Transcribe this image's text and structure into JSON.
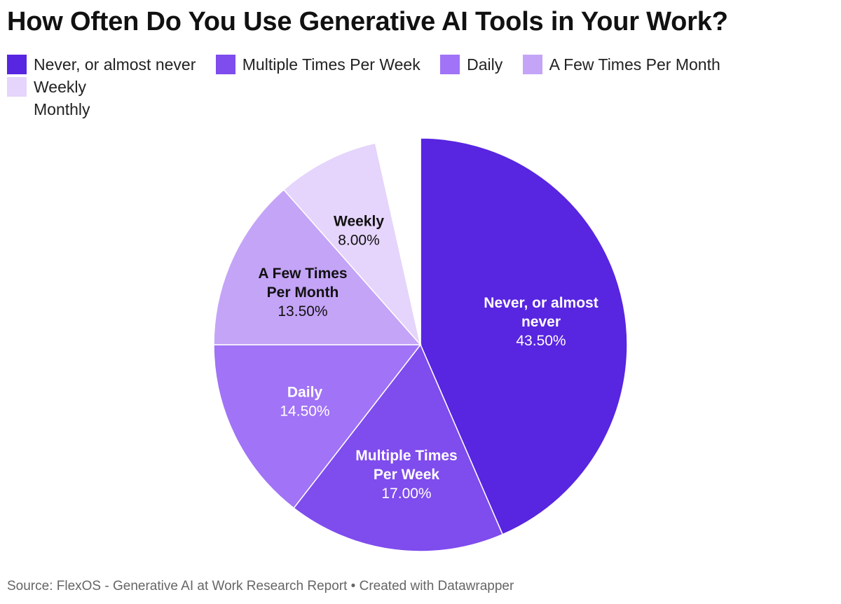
{
  "title": "How Often Do You Use Generative AI Tools in Your Work?",
  "source": "Source: FlexOS - Generative AI at Work Research Report • Created with Datawrapper",
  "legend": [
    {
      "label": "Never, or almost never",
      "color": "#5825e0"
    },
    {
      "label": "Multiple Times Per Week",
      "color": "#7f4ced"
    },
    {
      "label": "Daily",
      "color": "#a173f6"
    },
    {
      "label": "A Few Times Per Month",
      "color": "#c4a4f7"
    },
    {
      "label": "Weekly",
      "color": "#e5d4fb"
    },
    {
      "label": "Monthly",
      "color": ""
    }
  ],
  "chart_data": {
    "type": "pie",
    "title": "How Often Do You Use Generative AI Tools in Your Work?",
    "slices": [
      {
        "name": "Never, or almost never",
        "value": 43.5,
        "value_label": "43.50%",
        "label_lines": [
          "Never, or almost",
          "never"
        ],
        "color": "#5825e0",
        "label_color": "#ffffff"
      },
      {
        "name": "Multiple Times Per Week",
        "value": 17.0,
        "value_label": "17.00%",
        "label_lines": [
          "Multiple Times",
          "Per Week"
        ],
        "color": "#7f4ced",
        "label_color": "#ffffff"
      },
      {
        "name": "Daily",
        "value": 14.5,
        "value_label": "14.50%",
        "label_lines": [
          "Daily"
        ],
        "color": "#a173f6",
        "label_color": "#ffffff"
      },
      {
        "name": "A Few Times Per Month",
        "value": 13.5,
        "value_label": "13.50%",
        "label_lines": [
          "A Few Times",
          "Per Month"
        ],
        "color": "#c4a4f7",
        "label_color": "#111111"
      },
      {
        "name": "Weekly",
        "value": 8.0,
        "value_label": "8.00%",
        "label_lines": [
          "Weekly"
        ],
        "color": "#e5d4fb",
        "label_color": "#111111"
      },
      {
        "name": "Monthly",
        "value": 3.5,
        "value_label": "",
        "label_lines": [],
        "color": "#ffffff",
        "label_color": "#111111"
      }
    ],
    "legend_position": "top-left"
  }
}
